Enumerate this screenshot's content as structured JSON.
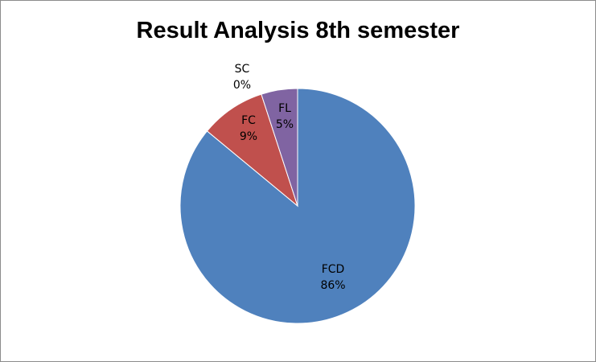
{
  "chart_data": {
    "type": "pie",
    "title": "Result Analysis 8th semester",
    "slices": [
      {
        "name": "FCD",
        "value": 86,
        "label": "86%",
        "color": "#4f81bd"
      },
      {
        "name": "SC",
        "value": 0,
        "label": "0%",
        "color": "#9bbb59"
      },
      {
        "name": "FC",
        "value": 9,
        "label": "9%",
        "color": "#c0504d"
      },
      {
        "name": "FL",
        "value": 5,
        "label": "5%",
        "color": "#8064a2"
      }
    ],
    "legend": "none",
    "start": "12 o'clock",
    "direction": "clockwise"
  }
}
